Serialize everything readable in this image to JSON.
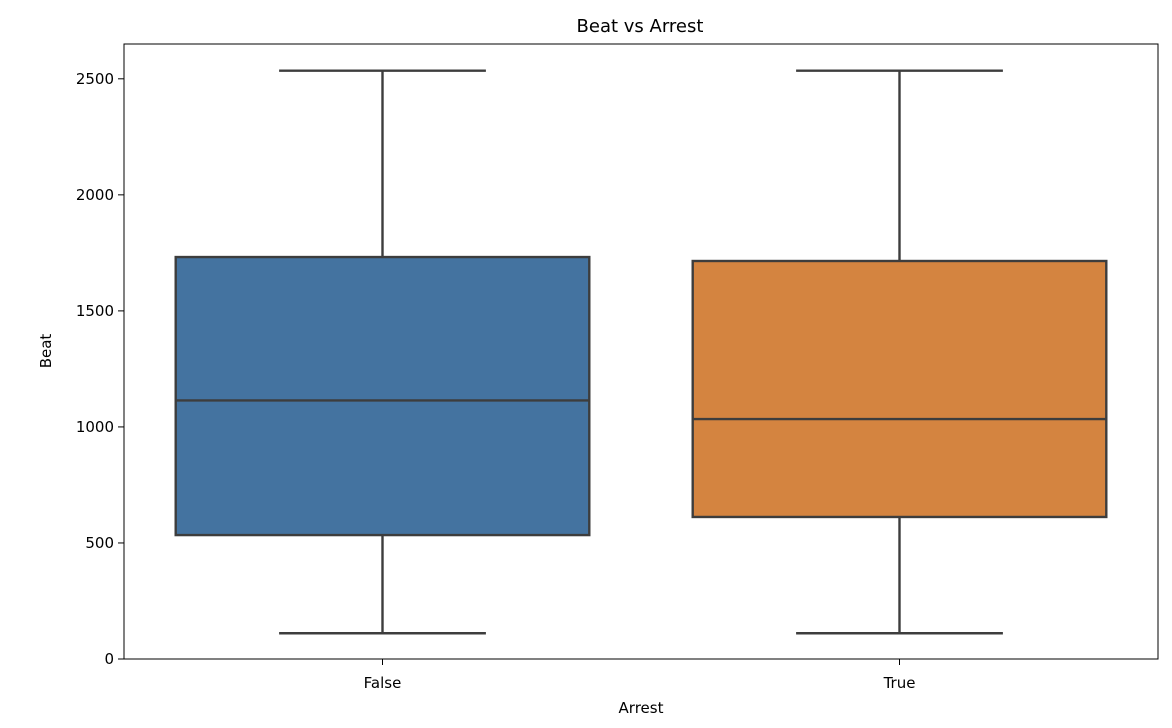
{
  "chart_data": {
    "type": "box",
    "title": "Beat vs Arrest",
    "xlabel": "Arrest",
    "ylabel": "Beat",
    "ylim": [
      0,
      2650
    ],
    "yticks": [
      0,
      500,
      1000,
      1500,
      2000,
      2500
    ],
    "categories": [
      "False",
      "True"
    ],
    "boxes": [
      {
        "category": "False",
        "whisker_low": 111,
        "q1": 534,
        "median": 1114,
        "q3": 1732,
        "whisker_high": 2535,
        "color": "#4473a0"
      },
      {
        "category": "True",
        "whisker_low": 111,
        "q1": 612,
        "median": 1034,
        "q3": 1715,
        "whisker_high": 2535,
        "color": "#d48440"
      }
    ],
    "grid": false,
    "legend": "none"
  },
  "colors": {
    "edge": "#3d3d3d",
    "axis": "#000000"
  }
}
